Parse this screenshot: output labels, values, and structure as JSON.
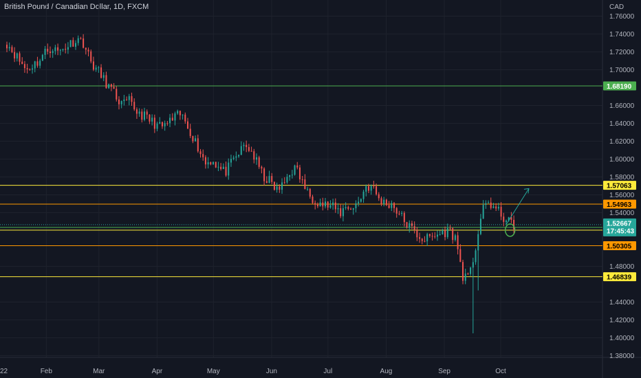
{
  "header": {
    "title": "British Pound / Canadian Dollar, 1D, FXCM",
    "currency": "CAD"
  },
  "colors": {
    "background": "#131722",
    "grid": "#1e222d",
    "up": "#26a69a",
    "down": "#ef5350",
    "text": "#b2b5be",
    "green_level": "#4caf50",
    "yellow_level": "#ffeb3b",
    "orange_level": "#ff9800",
    "teal_price": "#26a69a"
  },
  "chart_data": {
    "type": "candlestick",
    "title": "British Pound / Canadian Dollar, 1D, FXCM",
    "ylabel": "CAD",
    "ylim": [
      1.37,
      1.77
    ],
    "y_ticks": [
      "1.76000",
      "1.74000",
      "1.72000",
      "1.70000",
      "1.66000",
      "1.64000",
      "1.62000",
      "1.60000",
      "1.58000",
      "1.56000",
      "1.54000",
      "1.48000",
      "1.44000",
      "1.42000",
      "1.40000",
      "1.38000"
    ],
    "x_ticks": [
      "22",
      "Feb",
      "Mar",
      "Apr",
      "May",
      "Jun",
      "Jul",
      "Aug",
      "Sep",
      "Oct"
    ],
    "x_tick_days": [
      -10,
      21,
      49,
      80,
      110,
      141,
      171,
      202,
      233,
      263
    ],
    "levels": [
      {
        "value": 1.6819,
        "label": "1.68190",
        "color": "#4caf50",
        "tag_text_color": "#ffffff"
      },
      {
        "value": 1.57063,
        "label": "1.57063",
        "color": "#ffeb3b",
        "tag_text_color": "#000000"
      },
      {
        "value": 1.54963,
        "label": "1.54963",
        "color": "#ff9800",
        "tag_text_color": "#000000"
      },
      {
        "value": 1.52052,
        "label": "1.52052",
        "color": "#ffeb3b",
        "tag_text_color": "#000000"
      },
      {
        "value": 1.50305,
        "label": "1.50305",
        "color": "#ff9800",
        "tag_text_color": "#000000"
      },
      {
        "value": 1.46839,
        "label": "1.46839",
        "color": "#ffeb3b",
        "tag_text_color": "#000000"
      }
    ],
    "green_line": 1.5205,
    "current_price": {
      "label": "1.52667",
      "countdown": "17:45:43",
      "value": 1.52667
    },
    "anchor_closes": [
      [
        1.73,
        1.72,
        1.71,
        1.7,
        1.705,
        1.71,
        1.72,
        1.725,
        1.72,
        1.725,
        1.73,
        1.735,
        1.73,
        1.71,
        1.7,
        1.69,
        1.68,
        1.67,
        1.66,
        1.665,
        1.655,
        1.65,
        1.645,
        1.64,
        1.635,
        1.64,
        1.645,
        1.65,
        1.64,
        1.625
      ],
      [
        1.61,
        1.595,
        1.6,
        1.59,
        1.585,
        1.595,
        1.605,
        1.615,
        1.61,
        1.595,
        1.58,
        1.575,
        1.565,
        1.57,
        1.585,
        1.59,
        1.575,
        1.56,
        1.555,
        1.55,
        1.548,
        1.545,
        1.54,
        1.548,
        1.545,
        1.555,
        1.57,
        1.568,
        1.555,
        1.55
      ],
      [
        1.55,
        1.54,
        1.53,
        1.522,
        1.515,
        1.51,
        1.512,
        1.515,
        1.518,
        1.52,
        1.51,
        1.47,
        1.465,
        1.5,
        1.54,
        1.552,
        1.545,
        1.538,
        1.53,
        1.5267
      ]
    ],
    "events": [
      {
        "day": 248,
        "low": 1.405
      },
      {
        "day": 251,
        "low": 1.453
      }
    ],
    "annotations": {
      "arrow_from": {
        "day": 266,
        "price": 1.527
      },
      "arrow_to": {
        "day": 278,
        "price": 1.567
      },
      "ellipse_center": {
        "day": 268,
        "price": 1.522
      }
    }
  }
}
